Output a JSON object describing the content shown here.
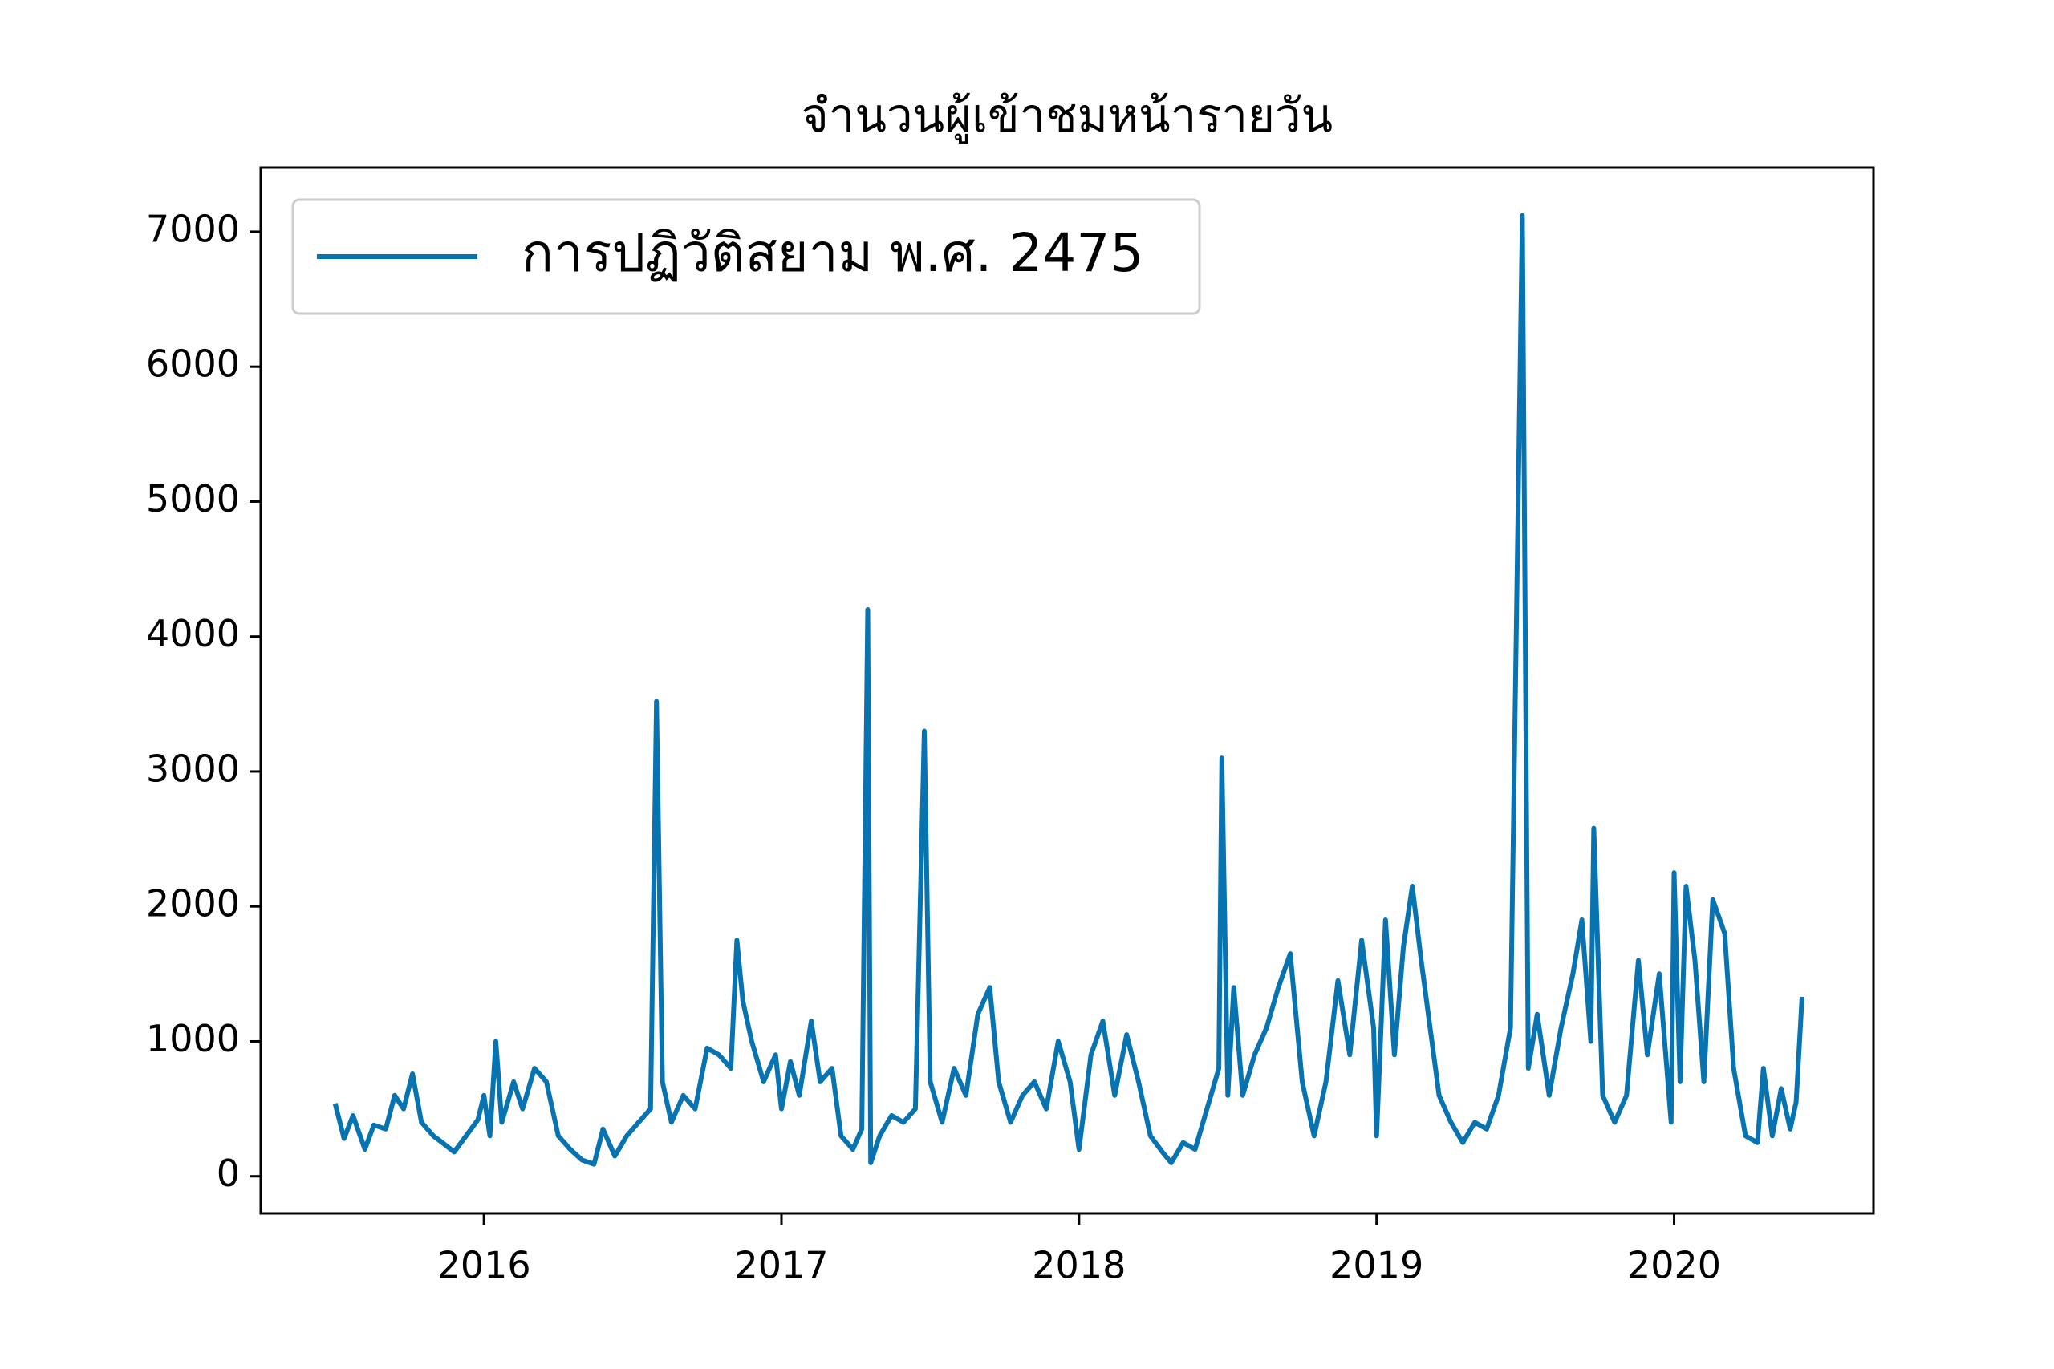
{
  "chart_data": {
    "type": "line",
    "title": "จำนวนผู้เข้าชมหน้ารายวัน",
    "legend": "upper left",
    "xlim": [
      2015.25,
      2020.67
    ],
    "xticks": [
      2016,
      2017,
      2018,
      2019,
      2020
    ],
    "ylim": [
      -275,
      7475
    ],
    "yticks": [
      0,
      1000,
      2000,
      3000,
      4000,
      5000,
      6000,
      7000
    ],
    "grid": false,
    "x": [
      2015.5,
      2015.53,
      2015.56,
      2015.6,
      2015.63,
      2015.67,
      2015.7,
      2015.73,
      2015.76,
      2015.79,
      2015.83,
      2015.86,
      2015.9,
      2015.94,
      2015.98,
      2016.0,
      2016.02,
      2016.04,
      2016.06,
      2016.1,
      2016.13,
      2016.17,
      2016.21,
      2016.25,
      2016.29,
      2016.33,
      2016.37,
      2016.4,
      2016.44,
      2016.48,
      2016.52,
      2016.56,
      2016.58,
      2016.6,
      2016.63,
      2016.67,
      2016.71,
      2016.75,
      2016.79,
      2016.83,
      2016.85,
      2016.87,
      2016.9,
      2016.94,
      2016.98,
      2017.0,
      2017.03,
      2017.06,
      2017.1,
      2017.13,
      2017.17,
      2017.2,
      2017.24,
      2017.27,
      2017.29,
      2017.3,
      2017.33,
      2017.37,
      2017.41,
      2017.45,
      2017.48,
      2017.5,
      2017.54,
      2017.58,
      2017.62,
      2017.66,
      2017.7,
      2017.73,
      2017.77,
      2017.81,
      2017.85,
      2017.89,
      2017.93,
      2017.97,
      2018.0,
      2018.04,
      2018.08,
      2018.12,
      2018.16,
      2018.2,
      2018.24,
      2018.28,
      2018.31,
      2018.35,
      2018.39,
      2018.43,
      2018.47,
      2018.48,
      2018.5,
      2018.52,
      2018.55,
      2018.59,
      2018.63,
      2018.67,
      2018.71,
      2018.75,
      2018.79,
      2018.83,
      2018.87,
      2018.91,
      2018.95,
      2018.99,
      2019.0,
      2019.03,
      2019.06,
      2019.09,
      2019.12,
      2019.15,
      2019.18,
      2019.21,
      2019.25,
      2019.29,
      2019.33,
      2019.37,
      2019.41,
      2019.45,
      2019.49,
      2019.51,
      2019.54,
      2019.58,
      2019.62,
      2019.66,
      2019.69,
      2019.72,
      2019.73,
      2019.76,
      2019.8,
      2019.84,
      2019.88,
      2019.91,
      2019.95,
      2019.99,
      2020.0,
      2020.02,
      2020.04,
      2020.07,
      2020.1,
      2020.13,
      2020.17,
      2020.2,
      2020.24,
      2020.28,
      2020.3,
      2020.33,
      2020.36,
      2020.39,
      2020.41,
      2020.43
    ],
    "series": [
      {
        "name": "การปฏิวัติสยาม พ.ศ. 2475",
        "color": "#0773b1",
        "values": [
          540,
          280,
          450,
          200,
          380,
          350,
          600,
          500,
          760,
          400,
          300,
          250,
          180,
          300,
          420,
          600,
          300,
          1000,
          400,
          700,
          500,
          800,
          700,
          300,
          200,
          120,
          90,
          350,
          150,
          300,
          400,
          500,
          3520,
          700,
          400,
          600,
          500,
          950,
          900,
          800,
          1750,
          1300,
          1000,
          700,
          900,
          500,
          850,
          600,
          1150,
          700,
          800,
          300,
          200,
          350,
          4200,
          100,
          300,
          450,
          400,
          500,
          3300,
          700,
          400,
          800,
          600,
          1200,
          1400,
          700,
          400,
          600,
          700,
          500,
          1000,
          700,
          200,
          900,
          1150,
          600,
          1050,
          700,
          300,
          180,
          100,
          250,
          200,
          500,
          800,
          3100,
          600,
          1400,
          600,
          900,
          1100,
          1400,
          1650,
          700,
          300,
          700,
          1450,
          900,
          1750,
          1100,
          300,
          1900,
          900,
          1700,
          2150,
          1600,
          1100,
          600,
          400,
          250,
          400,
          350,
          600,
          1100,
          7120,
          800,
          1200,
          600,
          1100,
          1500,
          1900,
          1000,
          2580,
          600,
          400,
          600,
          1600,
          900,
          1500,
          400,
          2250,
          700,
          2150,
          1600,
          700,
          2050,
          1800,
          800,
          300,
          250,
          800,
          300,
          650,
          350,
          550,
          1330
        ]
      }
    ]
  }
}
